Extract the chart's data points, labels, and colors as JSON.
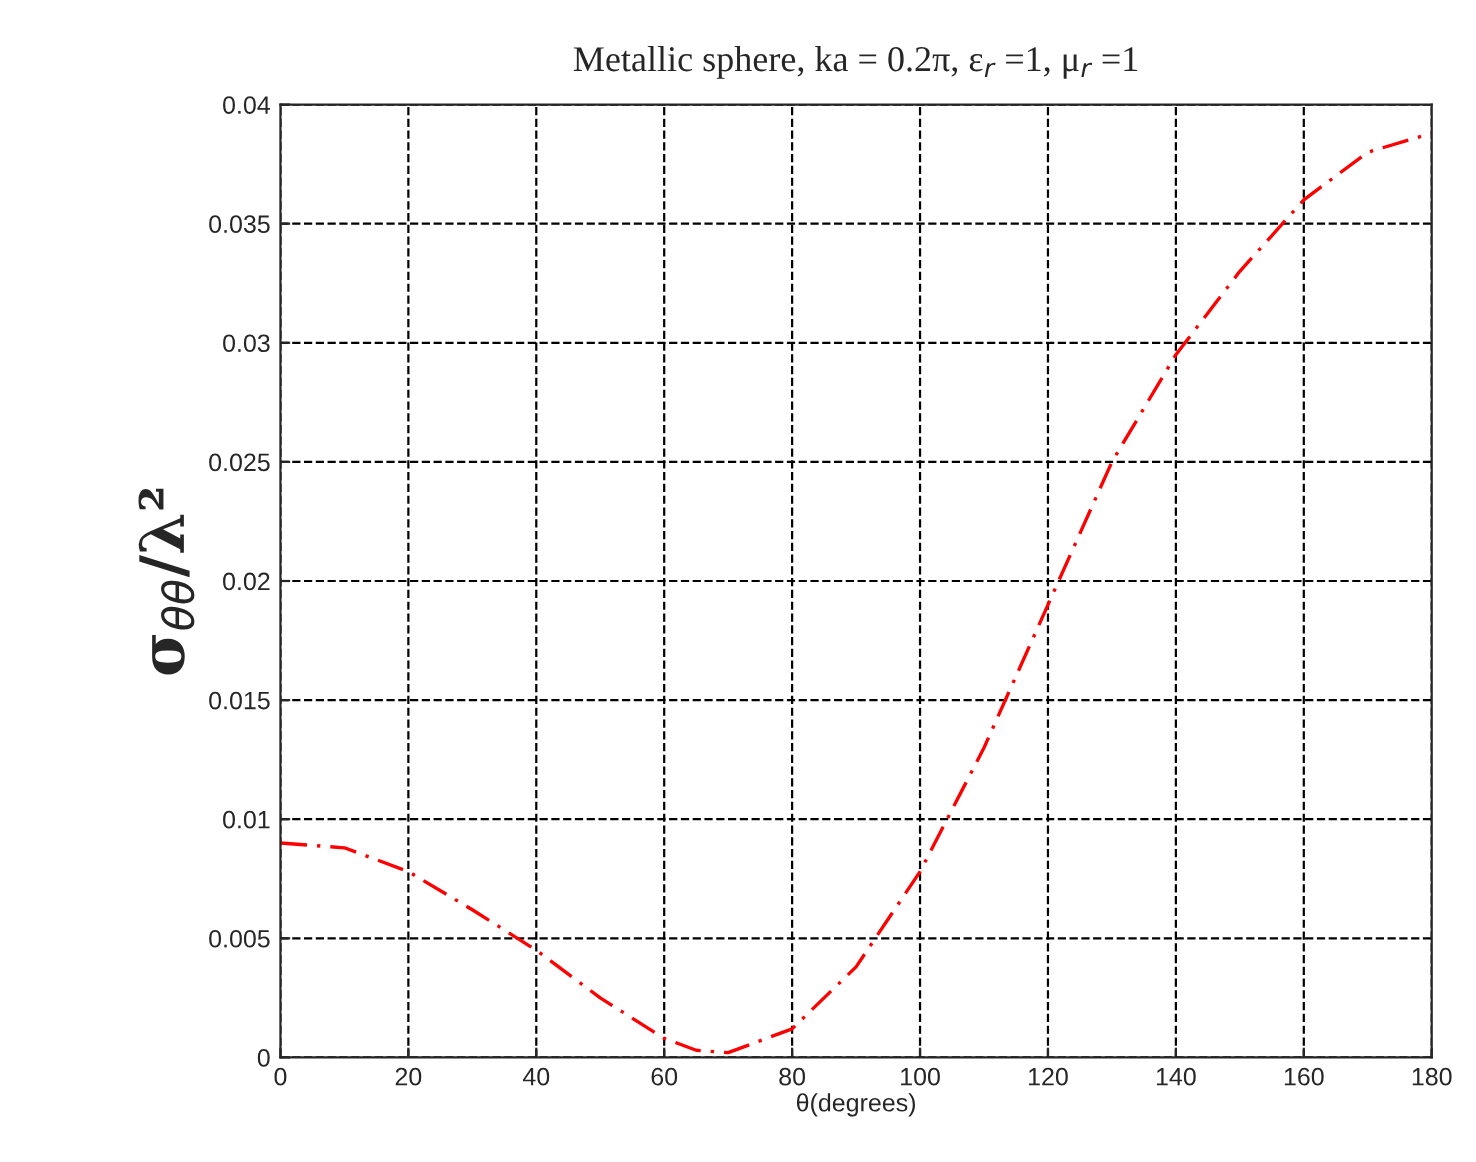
{
  "chart_data": {
    "type": "line",
    "title": "Metallic sphere, ka = 0.2π, ε$_{r}$ =1, μ$_{r}$ =1",
    "xlabel": "θ(degrees)",
    "ylabel": "σ$_{θθ}$/λ²",
    "x": [
      0,
      10,
      20,
      30,
      40,
      50,
      60,
      65,
      70,
      80,
      90,
      100,
      110,
      120,
      130,
      140,
      150,
      160,
      170,
      180
    ],
    "series": [
      {
        "color": "#ff0000",
        "values": [
          0.009,
          0.0088,
          0.0078,
          0.0062,
          0.0045,
          0.0025,
          0.0008,
          0.0003,
          0.0002,
          0.0012,
          0.0038,
          0.0078,
          0.013,
          0.019,
          0.025,
          0.0295,
          0.033,
          0.036,
          0.038,
          0.0388
        ]
      }
    ],
    "xlim": [
      0,
      180
    ],
    "xticks": [
      0,
      20,
      40,
      60,
      80,
      100,
      120,
      140,
      160,
      180
    ],
    "ylim": [
      0,
      0.04
    ],
    "yticks": [
      0,
      0.005,
      0.01,
      0.015,
      0.02,
      0.025,
      0.03,
      0.035,
      0.04
    ],
    "grid": true,
    "line_style": "dashed",
    "marker": "none"
  }
}
